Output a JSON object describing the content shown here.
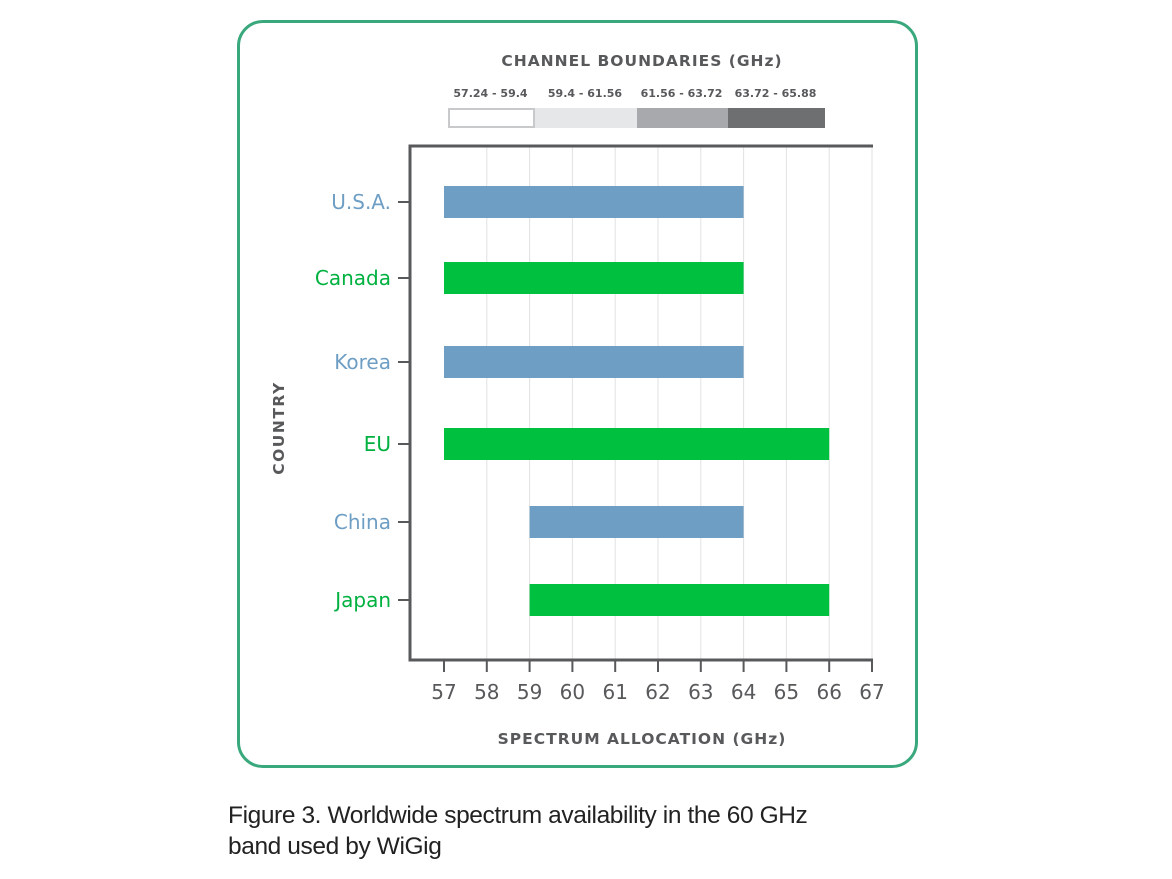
{
  "caption": {
    "line1": "Figure 3. Worldwide spectrum availability in the 60 GHz",
    "line2": "band used by WiGig"
  },
  "chart_data": {
    "type": "bar",
    "orientation": "horizontal-range",
    "title": "",
    "xlabel": "SPECTRUM ALLOCATION (GHz)",
    "ylabel": "COUNTRY",
    "xlim": [
      57,
      67
    ],
    "xticks": [
      57,
      58,
      59,
      60,
      61,
      62,
      63,
      64,
      65,
      66,
      67
    ],
    "grid": true,
    "categories": [
      "U.S.A.",
      "Canada",
      "Korea",
      "EU",
      "China",
      "Japan"
    ],
    "ranges": [
      {
        "category": "U.S.A.",
        "start": 57,
        "end": 64,
        "color": "#6e9ec4"
      },
      {
        "category": "Canada",
        "start": 57,
        "end": 64,
        "color": "#00c040"
      },
      {
        "category": "Korea",
        "start": 57,
        "end": 64,
        "color": "#6e9ec4"
      },
      {
        "category": "EU",
        "start": 57,
        "end": 66,
        "color": "#00c040"
      },
      {
        "category": "China",
        "start": 59,
        "end": 64,
        "color": "#6e9ec4"
      },
      {
        "category": "Japan",
        "start": 59,
        "end": 66,
        "color": "#00c040"
      }
    ],
    "legend": {
      "title": "CHANNEL BOUNDARIES (GHz)",
      "placement": "top",
      "items": [
        {
          "label": "57.24 - 59.4",
          "color": "#ffffff"
        },
        {
          "label": "59.4 - 61.56",
          "color": "#e6e7e8"
        },
        {
          "label": "61.56 - 63.72",
          "color": "#a7a9ac"
        },
        {
          "label": "63.72 - 65.88",
          "color": "#6d6f71"
        }
      ]
    },
    "colors": {
      "category_label_alt1": "#6e9ec4",
      "category_label_alt2": "#00b140",
      "axis": "#58595b",
      "grid": "#e2e2e2"
    }
  }
}
